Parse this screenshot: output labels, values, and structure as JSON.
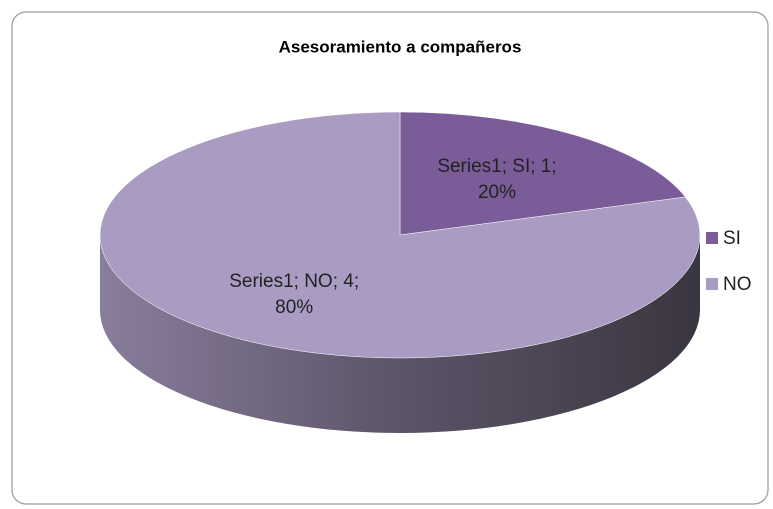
{
  "chart_data": {
    "type": "pie",
    "title": "Asesoramiento a compañeros",
    "categories": [
      "SI",
      "NO"
    ],
    "values": [
      1,
      4
    ],
    "value_labels": [
      "Series1; SI; 1; 20%",
      "Series1; NO; 4; 80%"
    ],
    "colors": [
      "#7a5c99",
      "#a99bc2"
    ],
    "legend": "right"
  }
}
